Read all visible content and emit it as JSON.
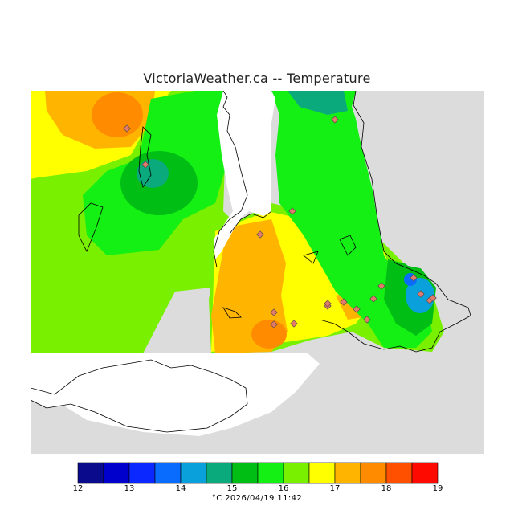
{
  "title": "VictoriaWeather.ca -- Temperature",
  "footer": "°C  2026/04/19 11:42",
  "legend": {
    "ticks": [
      "12",
      "13",
      "14",
      "15",
      "16",
      "17",
      "18",
      "19"
    ],
    "colors": [
      "#0a0a8c",
      "#0000cc",
      "#0a28ff",
      "#0a6cff",
      "#0aa0dc",
      "#0aaa7c",
      "#00be14",
      "#14f014",
      "#78f000",
      "#ffff00",
      "#ffb400",
      "#ff8c00",
      "#ff5000",
      "#ff0a00"
    ]
  },
  "map": {
    "land_color": "#dcdcdc",
    "water_color": "#ffffff",
    "coast_color": "#000000",
    "station_color": "#e07a6a",
    "station_count": 19
  }
}
